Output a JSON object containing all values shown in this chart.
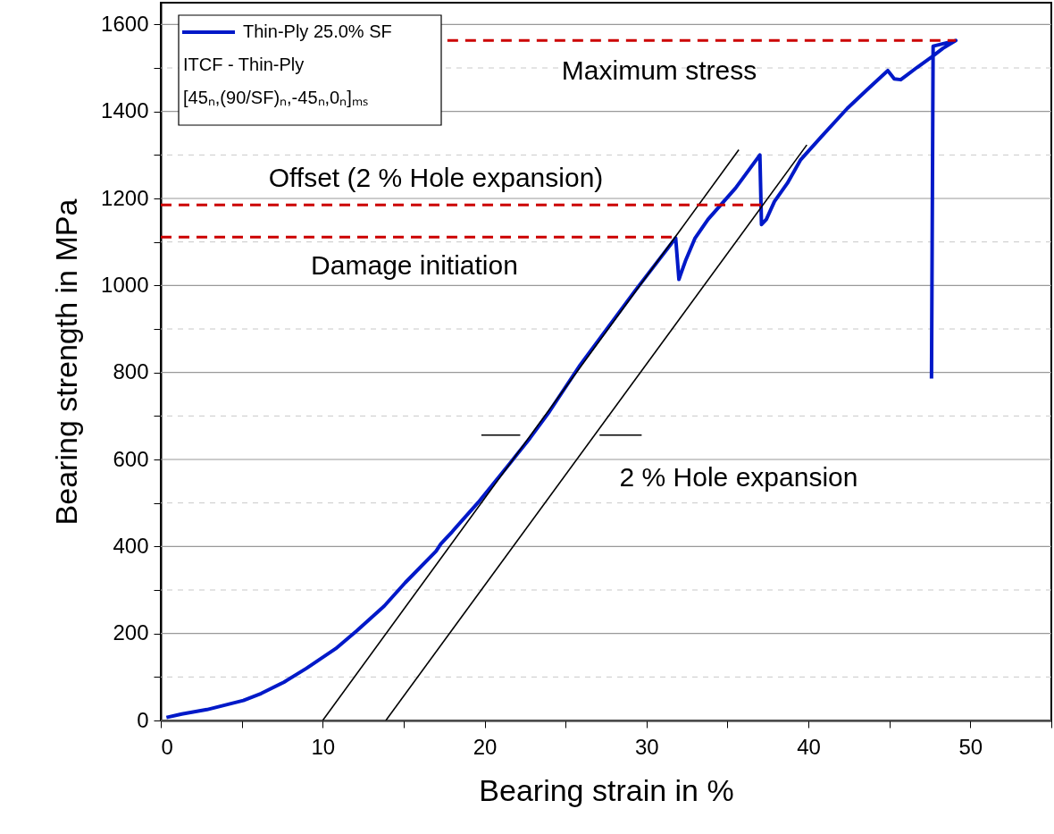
{
  "chart_data": {
    "type": "line",
    "xlabel": "Bearing strain in %",
    "ylabel": "Bearing strength in MPa",
    "xlim": [
      0,
      55
    ],
    "ylim": [
      0,
      1650
    ],
    "xticks": [
      0,
      {
        "value": 5,
        "label": null
      },
      10,
      {
        "value": 15,
        "label": null
      },
      20,
      {
        "value": 25,
        "label": null
      },
      30,
      {
        "value": 35,
        "label": null
      },
      40,
      {
        "value": 45,
        "label": null
      },
      50,
      {
        "value": 55,
        "label": null
      }
    ],
    "yticks": [
      0,
      {
        "value": 100,
        "label": null
      },
      200,
      {
        "value": 300,
        "label": null
      },
      400,
      {
        "value": 500,
        "label": null
      },
      600,
      {
        "value": 700,
        "label": null
      },
      800,
      {
        "value": 900,
        "label": null
      },
      1000,
      {
        "value": 1100,
        "label": null
      },
      1200,
      {
        "value": 1300,
        "label": null
      },
      1400,
      {
        "value": 1500,
        "label": null
      },
      1600
    ],
    "grid": "y",
    "legend": "top left",
    "marker": "none",
    "series": [
      {
        "name": "Thin-Ply 25.0% SF",
        "color": "#0019c8",
        "line_style": "solid",
        "x": [
          0.35,
          1.3,
          2.85,
          5.1,
          6.2,
          7.6,
          9.0,
          10.8,
          12.1,
          13.8,
          15.1,
          17.0,
          17.3,
          18.0,
          19.6,
          21.6,
          22.8,
          24.0,
          25.9,
          29.3,
          31.8,
          32.0,
          32.4,
          33.0,
          33.8,
          35.5,
          37.0,
          37.1,
          37.4,
          37.9,
          38.7,
          39.5,
          40.8,
          42.4,
          43.6,
          44.9,
          45.3,
          45.7,
          46.7,
          47.6,
          48.3,
          49.1,
          47.7,
          47.6
        ],
        "values": [
          7,
          15,
          25,
          46,
          62,
          88,
          120,
          165,
          206,
          263,
          317,
          389,
          406,
          434,
          501,
          593,
          649,
          710,
          817,
          988,
          1109,
          1014,
          1056,
          1109,
          1152,
          1224,
          1300,
          1140,
          1152,
          1193,
          1235,
          1288,
          1342,
          1407,
          1449,
          1494,
          1475,
          1473,
          1501,
          1525,
          1545,
          1563,
          1550,
          786
        ]
      },
      {
        "color": "#000000",
        "line_style": "solid",
        "x": [
          10.0,
          35.7
        ],
        "values": [
          0,
          1312
        ]
      },
      {
        "color": "#000000",
        "line_style": "solid",
        "x": [
          13.9,
          39.9
        ],
        "values": [
          0,
          1323
        ]
      },
      {
        "color": "#000000",
        "line_style": "solid",
        "x": [
          19.8,
          22.2
        ],
        "values": [
          656,
          656
        ]
      },
      {
        "color": "#000000",
        "line_style": "solid",
        "x": [
          27.1,
          29.7
        ],
        "values": [
          656,
          656
        ]
      },
      {
        "color": "#cc0000",
        "line_style": "dashed",
        "x": [
          17.7,
          49.1
        ],
        "values": [
          1563,
          1563
        ]
      },
      {
        "color": "#cc0000",
        "line_style": "dashed",
        "x": [
          0,
          37.3
        ],
        "values": [
          1185,
          1185
        ]
      },
      {
        "color": "#cc0000",
        "line_style": "dashed",
        "x": [
          0,
          31.6
        ],
        "values": [
          1111,
          1111
        ]
      }
    ],
    "annotations": [
      "Maximum stress",
      "Offset (2 % Hole expansion)",
      "Damage initiation",
      "2 % Hole expansion",
      "ITCF - Thin-Ply",
      "[45ₙ,(90/SF)ₙ,-45ₙ,0ₙ]ₘₛ"
    ]
  }
}
